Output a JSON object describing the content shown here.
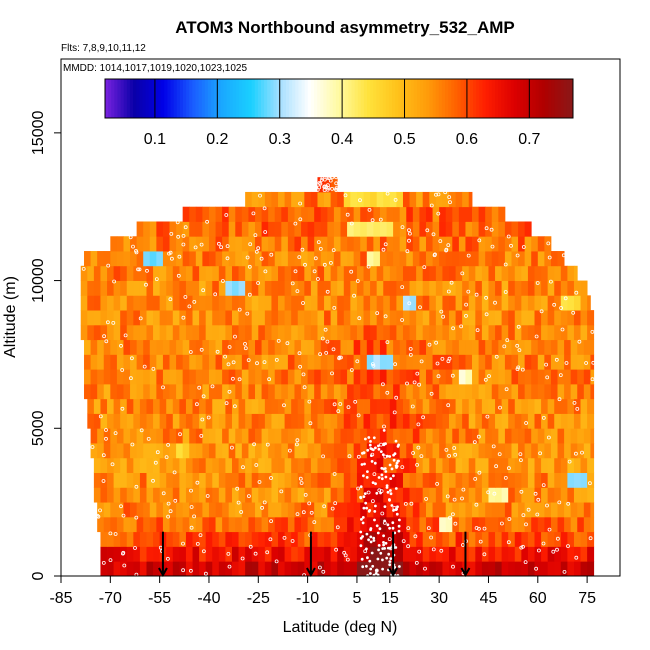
{
  "chart_data": {
    "type": "heatmap",
    "title": "ATOM3 Northbound asymmetry_532_AMP",
    "annotations": {
      "flights": "Flts: 7,8,9,10,11,12",
      "mmdd": "MMDD: 1014,1017,1019,1020,1023,1025"
    },
    "xlabel": "Latitude (deg N)",
    "ylabel": "Altitude (m)",
    "xlim": [
      -85,
      85
    ],
    "ylim": [
      0,
      17500
    ],
    "x_ticks": [
      -85,
      -70,
      -55,
      -40,
      -25,
      -10,
      5,
      15,
      30,
      45,
      60,
      75
    ],
    "y_ticks": [
      0,
      5000,
      10000,
      15000
    ],
    "colorbar": {
      "ticks": [
        "0.1",
        "0.2",
        "0.3",
        "0.4",
        "0.5",
        "0.6",
        "0.7"
      ],
      "tick_values": [
        0.1,
        0.2,
        0.3,
        0.4,
        0.5,
        0.6,
        0.7
      ],
      "range": [
        0.02,
        0.77
      ],
      "colors": [
        "#7a22e0",
        "#0a00a8",
        "#0000e8",
        "#1a5cff",
        "#1aa8ff",
        "#1ad0ff",
        "#a8e0ff",
        "#ffffff",
        "#fffaa0",
        "#ffe23c",
        "#ffc21a",
        "#ff9d0a",
        "#ff6200",
        "#ff1e00",
        "#dc0000",
        "#b00000",
        "#8a1818"
      ]
    },
    "grid": false,
    "cell_height_m": 500,
    "rows": [
      {
        "alt": 0,
        "xmin": -73,
        "xmax": 77,
        "base": 0.66
      },
      {
        "alt": 500,
        "xmin": -73,
        "xmax": 77,
        "base": 0.62
      },
      {
        "alt": 1000,
        "xmin": -73,
        "xmax": 77,
        "base": 0.6
      },
      {
        "alt": 1500,
        "xmin": -74,
        "xmax": 77,
        "base": 0.58
      },
      {
        "alt": 2000,
        "xmin": -74,
        "xmax": 77,
        "base": 0.56
      },
      {
        "alt": 2500,
        "xmin": -75,
        "xmax": 77,
        "base": 0.55
      },
      {
        "alt": 3000,
        "xmin": -75,
        "xmax": 77,
        "base": 0.55
      },
      {
        "alt": 3500,
        "xmin": -75,
        "xmax": 77,
        "base": 0.54
      },
      {
        "alt": 4000,
        "xmin": -76,
        "xmax": 77,
        "base": 0.54
      },
      {
        "alt": 4500,
        "xmin": -76,
        "xmax": 77,
        "base": 0.55
      },
      {
        "alt": 5000,
        "xmin": -77,
        "xmax": 77,
        "base": 0.55
      },
      {
        "alt": 5500,
        "xmin": -77,
        "xmax": 77,
        "base": 0.55
      },
      {
        "alt": 6000,
        "xmin": -78,
        "xmax": 77,
        "base": 0.55
      },
      {
        "alt": 6500,
        "xmin": -78,
        "xmax": 77,
        "base": 0.56
      },
      {
        "alt": 7000,
        "xmin": -78,
        "xmax": 77,
        "base": 0.56
      },
      {
        "alt": 7500,
        "xmin": -78,
        "xmax": 77,
        "base": 0.56
      },
      {
        "alt": 8000,
        "xmin": -79,
        "xmax": 77,
        "base": 0.55
      },
      {
        "alt": 8500,
        "xmin": -79,
        "xmax": 77,
        "base": 0.55
      },
      {
        "alt": 9000,
        "xmin": -79,
        "xmax": 76,
        "base": 0.55
      },
      {
        "alt": 9500,
        "xmin": -79,
        "xmax": 75,
        "base": 0.55
      },
      {
        "alt": 10000,
        "xmin": -79,
        "xmax": 72,
        "base": 0.56
      },
      {
        "alt": 10500,
        "xmin": -78,
        "xmax": 68,
        "base": 0.56
      },
      {
        "alt": 11000,
        "xmin": -70,
        "xmax": 64,
        "base": 0.57
      },
      {
        "alt": 11500,
        "xmin": -62,
        "xmax": 58,
        "base": 0.58
      },
      {
        "alt": 12000,
        "xmin": -48,
        "xmax": 50,
        "base": 0.58
      },
      {
        "alt": 12500,
        "xmin": -29,
        "xmax": 40,
        "base": 0.56
      },
      {
        "alt": 13000,
        "xmin": -7,
        "xmax": -1,
        "base": 0.58
      }
    ],
    "anomalies": [
      {
        "lat": -57,
        "alt": 10500,
        "w": 6,
        "value": 0.28
      },
      {
        "lat": -32,
        "alt": 9500,
        "w": 8,
        "value": 0.3
      },
      {
        "lat": 21,
        "alt": 9000,
        "w": 6,
        "value": 0.3
      },
      {
        "lat": 12,
        "alt": 7000,
        "w": 7,
        "value": 0.3
      },
      {
        "lat": 72,
        "alt": 3000,
        "w": 6,
        "value": 0.3
      },
      {
        "lat": 9,
        "alt": 11500,
        "w": 15,
        "value": 0.42
      },
      {
        "lat": 10,
        "alt": 12500,
        "w": 20,
        "value": 0.45
      },
      {
        "lat": 10,
        "alt": 10500,
        "w": 4,
        "value": 0.4
      },
      {
        "lat": 38,
        "alt": 6500,
        "w": 4,
        "value": 0.38
      },
      {
        "lat": 32,
        "alt": 1500,
        "w": 4,
        "value": 0.38
      },
      {
        "lat": -48,
        "alt": 4000,
        "w": 6,
        "value": 0.46
      },
      {
        "lat": 48,
        "alt": 2500,
        "w": 6,
        "value": 0.4
      },
      {
        "lat": 70,
        "alt": 9000,
        "w": 6,
        "value": 0.45
      }
    ],
    "arrows_lat": [
      -54,
      -9,
      16,
      38
    ]
  }
}
